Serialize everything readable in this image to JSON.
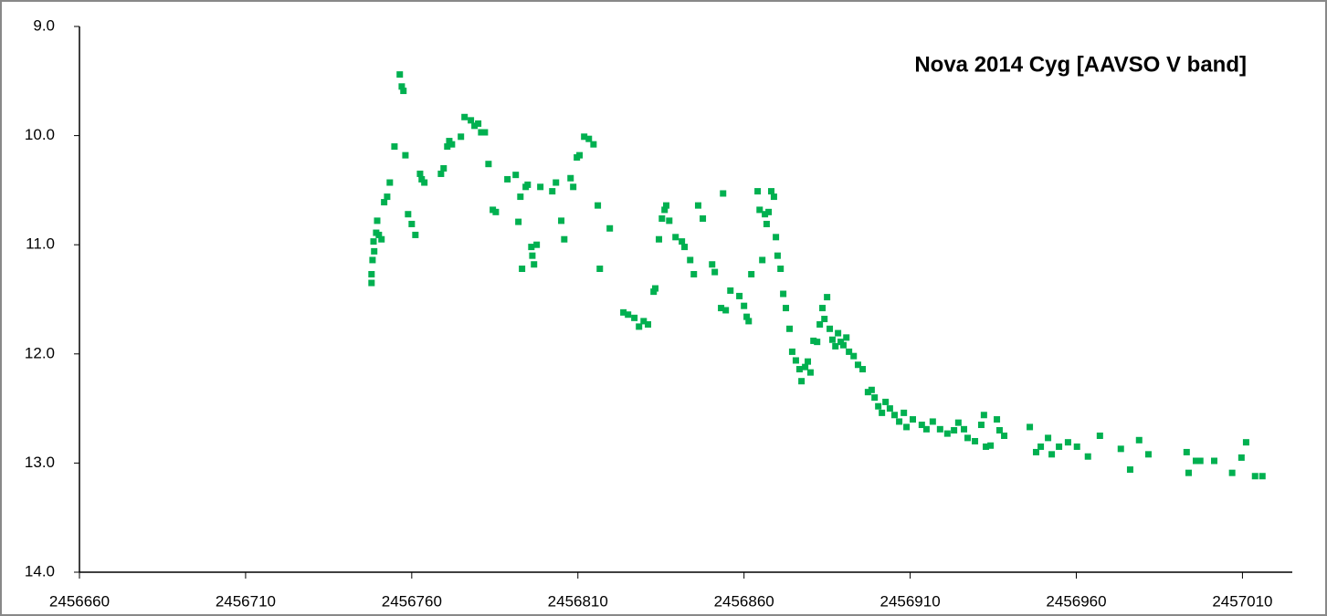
{
  "chart_data": {
    "type": "scatter",
    "title": "Nova 2014 Cyg [AAVSO V band]",
    "color": "#00b050",
    "xlim": [
      2456660,
      2457025
    ],
    "ylim": [
      14.0,
      9.0
    ],
    "xticks": [
      2456660,
      2456710,
      2456760,
      2456810,
      2456860,
      2456910,
      2456960,
      2457010
    ],
    "yticks": [
      {
        "value": 9,
        "label": "9.0"
      },
      {
        "value": 10,
        "label": "10.0"
      },
      {
        "value": 11,
        "label": "11.0"
      },
      {
        "value": 12,
        "label": "12.0"
      },
      {
        "value": 13,
        "label": "13.0"
      },
      {
        "value": 14,
        "label": "14.0"
      }
    ],
    "x": [
      2456747.9,
      2456747.9,
      2456748.2,
      2456748.5,
      2456748.7,
      2456749.3,
      2456749.6,
      2456750.1,
      2456750.9,
      2456751.7,
      2456752.6,
      2456753.4,
      2456754.8,
      2456756.4,
      2456757.0,
      2456757.5,
      2456758.1,
      2456758.9,
      2456760.0,
      2456761.1,
      2456762.5,
      2456763.0,
      2456763.8,
      2456768.8,
      2456769.6,
      2456770.7,
      2456771.3,
      2456772.1,
      2456774.8,
      2456775.9,
      2456777.8,
      2456778.9,
      2456780.0,
      2456780.9,
      2456782.0,
      2456783.1,
      2456784.4,
      2456785.3,
      2456788.8,
      2456791.3,
      2456792.1,
      2456792.7,
      2456793.2,
      2456794.3,
      2456794.9,
      2456796.0,
      2456796.3,
      2456796.8,
      2456797.6,
      2456798.7,
      2456802.3,
      2456803.4,
      2456805.0,
      2456805.9,
      2456807.8,
      2456808.6,
      2456809.7,
      2456810.5,
      2456811.9,
      2456813.3,
      2456814.7,
      2456816.0,
      2456816.6,
      2456819.6,
      2456823.7,
      2456825.1,
      2456827.0,
      2456828.4,
      2456829.8,
      2456831.1,
      2456832.8,
      2456833.3,
      2456834.4,
      2456835.3,
      2456836.1,
      2456836.6,
      2456837.5,
      2456839.4,
      2456841.3,
      2456842.1,
      2456843.8,
      2456844.9,
      2456846.2,
      2456847.6,
      2456850.4,
      2456851.2,
      2456853.1,
      2456853.7,
      2456854.5,
      2456855.9,
      2456858.6,
      2456860.0,
      2456860.8,
      2456861.4,
      2456862.2,
      2456864.1,
      2456864.7,
      2456865.5,
      2456866.3,
      2456866.8,
      2456867.4,
      2456868.2,
      2456869.0,
      2456869.6,
      2456870.1,
      2456871.0,
      2456871.8,
      2456872.6,
      2456873.7,
      2456874.5,
      2456875.6,
      2456876.7,
      2456877.3,
      2456878.4,
      2456879.2,
      2456880.0,
      2456880.9,
      2456882.0,
      2456882.8,
      2456883.6,
      2456884.2,
      2456885.0,
      2456885.8,
      2456886.6,
      2456887.5,
      2456888.3,
      2456889.1,
      2456889.9,
      2456890.8,
      2456891.6,
      2456893.0,
      2456894.3,
      2456895.7,
      2456897.3,
      2456898.4,
      2456899.3,
      2456900.4,
      2456901.5,
      2456902.6,
      2456903.9,
      2456905.3,
      2456906.7,
      2456908.1,
      2456908.9,
      2456910.8,
      2456913.5,
      2456914.9,
      2456916.8,
      2456919.0,
      2456921.2,
      2456923.2,
      2456924.5,
      2456926.2,
      2456927.3,
      2456929.5,
      2456931.4,
      2456932.2,
      2456932.8,
      2456934.2,
      2456936.1,
      2456936.9,
      2456938.3,
      2456946.0,
      2456947.9,
      2456949.3,
      2456951.5,
      2456952.6,
      2456954.8,
      2456957.5,
      2456960.2,
      2456963.5,
      2456967.1,
      2456973.4,
      2456976.2,
      2456978.9,
      2456981.7,
      2456993.2,
      2456993.8,
      2456996.0,
      2456997.3,
      2457001.5,
      2457006.9,
      2457009.7,
      2457011.1,
      2457013.8,
      2457016.0
    ],
    "values": [
      11.35,
      11.27,
      11.14,
      10.97,
      11.06,
      10.89,
      10.78,
      10.91,
      10.95,
      10.61,
      10.56,
      10.43,
      10.1,
      9.44,
      9.55,
      9.59,
      10.18,
      10.72,
      10.81,
      10.91,
      10.35,
      10.4,
      10.43,
      10.35,
      10.3,
      10.1,
      10.05,
      10.08,
      10.01,
      9.83,
      9.86,
      9.91,
      9.89,
      9.97,
      9.97,
      10.26,
      10.68,
      10.7,
      10.4,
      10.36,
      10.79,
      10.56,
      11.22,
      10.47,
      10.45,
      11.02,
      11.1,
      11.18,
      11.0,
      10.47,
      10.51,
      10.43,
      10.78,
      10.95,
      10.39,
      10.47,
      10.2,
      10.18,
      10.01,
      10.03,
      10.08,
      10.64,
      11.22,
      10.85,
      11.62,
      11.64,
      11.67,
      11.75,
      11.7,
      11.73,
      11.43,
      11.4,
      10.95,
      10.76,
      10.68,
      10.64,
      10.78,
      10.93,
      10.97,
      11.02,
      11.14,
      11.27,
      10.64,
      10.76,
      11.18,
      11.25,
      11.58,
      10.53,
      11.6,
      11.42,
      11.47,
      11.56,
      11.66,
      11.7,
      11.27,
      10.51,
      10.68,
      11.14,
      10.72,
      10.81,
      10.7,
      10.51,
      10.56,
      10.93,
      11.1,
      11.22,
      11.45,
      11.58,
      11.77,
      11.98,
      12.06,
      12.14,
      12.25,
      12.12,
      12.07,
      12.17,
      11.88,
      11.89,
      11.73,
      11.58,
      11.68,
      11.48,
      11.77,
      11.87,
      11.93,
      11.81,
      11.89,
      11.92,
      11.85,
      11.98,
      12.02,
      12.1,
      12.14,
      12.35,
      12.33,
      12.4,
      12.48,
      12.54,
      12.44,
      12.5,
      12.56,
      12.62,
      12.54,
      12.67,
      12.6,
      12.65,
      12.69,
      12.62,
      12.69,
      12.73,
      12.7,
      12.63,
      12.69,
      12.77,
      12.8,
      12.65,
      12.56,
      12.85,
      12.84,
      12.6,
      12.7,
      12.75,
      12.67,
      12.9,
      12.85,
      12.77,
      12.92,
      12.85,
      12.81,
      12.85,
      12.94,
      12.75,
      12.87,
      13.06,
      12.79,
      12.92,
      12.9,
      13.09,
      12.98,
      12.98,
      12.98,
      13.09,
      12.95,
      12.81,
      13.12,
      13.12
    ]
  }
}
